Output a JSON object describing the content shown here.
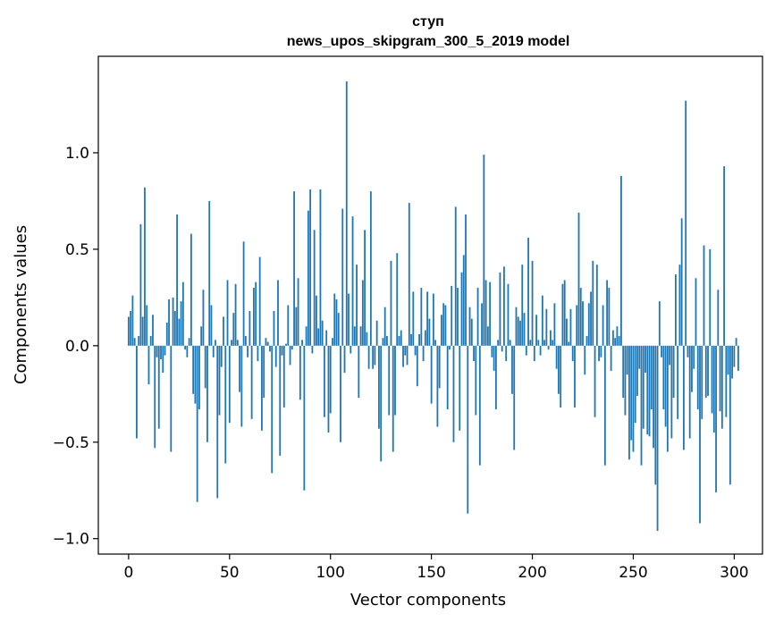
{
  "chart_data": {
    "type": "bar",
    "title": "ступ",
    "subtitle": "news_upos_skipgram_300_5_2019 model",
    "xlabel": "Vector components",
    "ylabel": "Components values",
    "xlim": [
      -15,
      314
    ],
    "ylim": [
      -1.08,
      1.5
    ],
    "xticks": [
      0,
      50,
      100,
      150,
      200,
      250,
      300
    ],
    "xtick_labels": [
      "0",
      "50",
      "100",
      "150",
      "200",
      "250",
      "300"
    ],
    "yticks": [
      -1.0,
      -0.5,
      0.0,
      0.5,
      1.0
    ],
    "ytick_labels": [
      "−1.0",
      "−0.5",
      "0.0",
      "0.5",
      "1.0"
    ],
    "bar_color": "#1f77b4",
    "grid": false,
    "values": [
      0.15,
      0.18,
      0.26,
      0.04,
      -0.48,
      0.05,
      0.63,
      0.15,
      0.82,
      0.21,
      -0.2,
      0.05,
      0.16,
      -0.53,
      -0.06,
      -0.43,
      -0.07,
      -0.14,
      -0.05,
      0.12,
      0.24,
      -0.55,
      0.25,
      0.18,
      0.68,
      0.14,
      0.23,
      0.33,
      -0.02,
      -0.06,
      0.04,
      0.58,
      -0.25,
      -0.3,
      -0.81,
      -0.33,
      0.1,
      0.29,
      -0.22,
      -0.5,
      0.75,
      0.21,
      -0.06,
      0.03,
      -0.79,
      -0.36,
      -0.11,
      0.15,
      -0.61,
      0.34,
      -0.4,
      0.03,
      0.17,
      0.32,
      0.03,
      -0.24,
      -0.42,
      0.54,
      0.05,
      -0.06,
      0.18,
      -0.38,
      0.3,
      0.33,
      -0.08,
      0.46,
      -0.44,
      -0.27,
      0.04,
      0.02,
      -0.03,
      -0.66,
      0.18,
      -0.11,
      0.34,
      -0.57,
      -0.05,
      -0.32,
      0.01,
      0.21,
      -0.1,
      -0.02,
      0.8,
      0.2,
      0.35,
      -0.28,
      0.03,
      -0.75,
      0.1,
      0.7,
      0.81,
      -0.04,
      0.6,
      0.26,
      0.09,
      0.81,
      0.13,
      -0.37,
      0.08,
      -0.45,
      -0.35,
      0.04,
      0.27,
      0.24,
      0.17,
      -0.5,
      0.71,
      -0.14,
      1.37,
      0.27,
      -0.04,
      0.67,
      0.1,
      0.42,
      -0.27,
      0.1,
      0.34,
      0.6,
      0.07,
      -0.12,
      0.8,
      -0.12,
      -0.1,
      0.13,
      -0.43,
      -0.6,
      0.04,
      0.2,
      0.05,
      -0.36,
      0.44,
      -0.55,
      -0.36,
      0.48,
      0.05,
      0.08,
      -0.11,
      -0.05,
      -0.1,
      0.74,
      0.06,
      0.28,
      -0.05,
      -0.21,
      0.06,
      0.3,
      -0.08,
      0.08,
      0.28,
      0.14,
      -0.3,
      0.27,
      0.03,
      -0.42,
      -0.22,
      0.16,
      0.22,
      0.21,
      -0.33,
      -0.02,
      0.31,
      -0.5,
      0.72,
      0.3,
      -0.44,
      0.38,
      0.47,
      0.68,
      -0.87,
      0.2,
      0.14,
      -0.08,
      -0.36,
      0.3,
      -0.62,
      0.22,
      0.99,
      0.34,
      0.1,
      0.33,
      -0.06,
      -0.13,
      -0.33,
      0.03,
      0.38,
      -0.03,
      0.41,
      -0.08,
      0.32,
      0.03,
      -0.25,
      -0.54,
      0.2,
      0.15,
      0.13,
      0.42,
      0.17,
      -0.05,
      0.56,
      0.03,
      0.44,
      -0.08,
      0.16,
      0.03,
      -0.05,
      0.26,
      0.03,
      0.19,
      -0.02,
      0.08,
      0.03,
      0.22,
      -0.12,
      -0.25,
      -0.32,
      0.32,
      0.34,
      0.14,
      0.02,
      0.19,
      -0.08,
      -0.32,
      0.21,
      0.69,
      0.3,
      0.23,
      -0.15,
      0.05,
      0.22,
      0.28,
      0.44,
      -0.37,
      0.42,
      -0.08,
      -0.06,
      0.21,
      -0.62,
      0.34,
      0.3,
      -0.13,
      0.08,
      0.04,
      0.1,
      0.05,
      0.88,
      -0.27,
      -0.36,
      -0.15,
      -0.59,
      -0.49,
      -0.55,
      -0.4,
      -0.26,
      -0.12,
      -0.62,
      -0.43,
      -0.14,
      -0.46,
      -0.47,
      -0.33,
      -0.53,
      -0.72,
      -0.96,
      0.23,
      -0.06,
      -0.33,
      -0.42,
      -0.55,
      -0.1,
      -0.48,
      -0.27,
      0.37,
      -0.38,
      0.42,
      0.66,
      -0.54,
      1.27,
      -0.06,
      -0.48,
      -0.24,
      -0.12,
      0.35,
      -0.33,
      -0.92,
      -0.38,
      0.52,
      -0.27,
      -0.26,
      0.5,
      -0.35,
      -0.45,
      -0.76,
      0.29,
      -0.34,
      -0.43,
      0.93,
      -0.37,
      -0.15,
      -0.72,
      -0.17,
      -0.11,
      0.04,
      -0.13
    ]
  }
}
